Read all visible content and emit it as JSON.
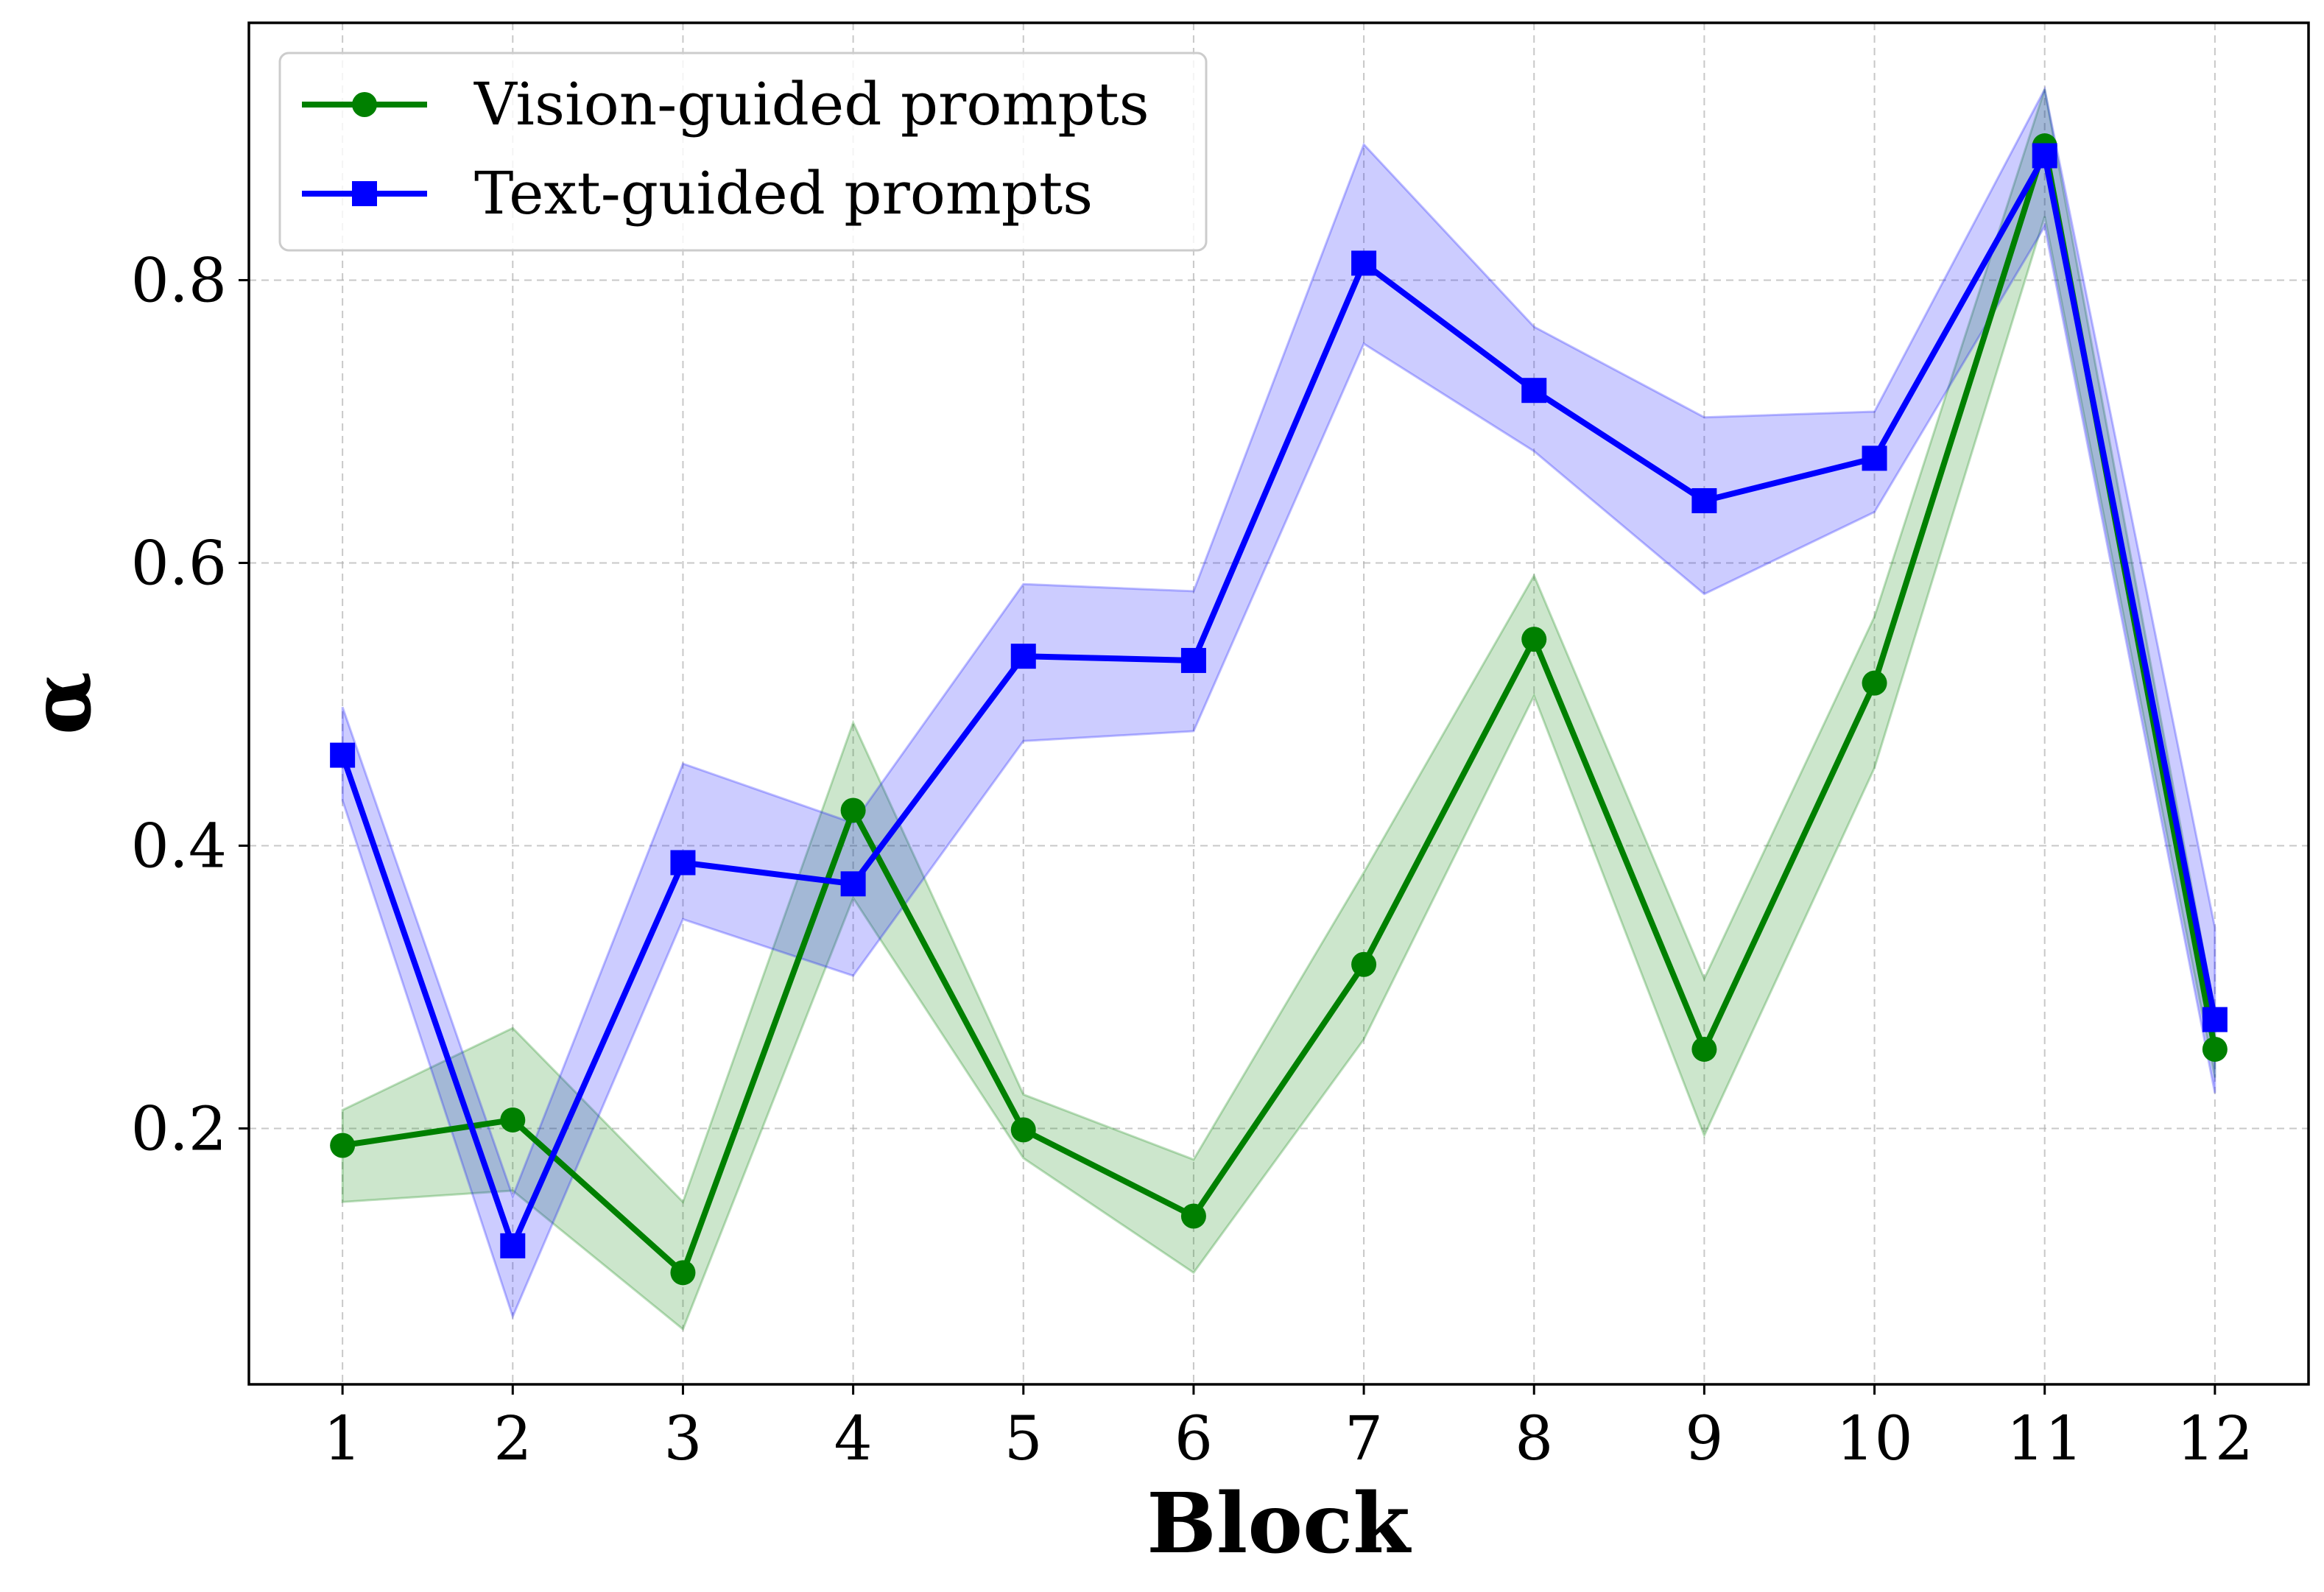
{
  "chart_data": {
    "type": "line",
    "title": "",
    "xlabel": "Block",
    "ylabel": "α",
    "x": [
      1,
      2,
      3,
      4,
      5,
      6,
      7,
      8,
      9,
      10,
      11,
      12
    ],
    "x_tick_labels": [
      "1",
      "2",
      "3",
      "4",
      "5",
      "6",
      "7",
      "8",
      "9",
      "10",
      "11",
      "12"
    ],
    "xlim": [
      0.45,
      12.55
    ],
    "ylim": [
      0.019,
      0.982
    ],
    "y_ticks": [
      0.2,
      0.4,
      0.6,
      0.8
    ],
    "y_tick_labels": [
      "0.2",
      "0.4",
      "0.6",
      "0.8"
    ],
    "grid": true,
    "grid_style": "dashed",
    "legend_position": "upper-left",
    "series": [
      {
        "name": "Vision-guided prompts",
        "color": "#008000",
        "band_color": "#008000",
        "marker": "circle",
        "values": [
          0.188,
          0.206,
          0.098,
          0.425,
          0.199,
          0.138,
          0.316,
          0.546,
          0.256,
          0.515,
          0.895,
          0.256
        ],
        "lower": [
          0.148,
          0.156,
          0.058,
          0.363,
          0.179,
          0.098,
          0.263,
          0.506,
          0.195,
          0.455,
          0.845,
          0.236
        ],
        "upper": [
          0.213,
          0.271,
          0.148,
          0.487,
          0.224,
          0.178,
          0.381,
          0.591,
          0.306,
          0.562,
          0.935,
          0.282
        ]
      },
      {
        "name": "Text-guided prompts",
        "color": "#0000ff",
        "band_color": "#0000ff",
        "marker": "square",
        "values": [
          0.464,
          0.117,
          0.388,
          0.373,
          0.534,
          0.531,
          0.812,
          0.722,
          0.644,
          0.674,
          0.888,
          0.277
        ],
        "lower": [
          0.432,
          0.067,
          0.348,
          0.308,
          0.474,
          0.481,
          0.755,
          0.679,
          0.578,
          0.636,
          0.838,
          0.225
        ],
        "upper": [
          0.498,
          0.152,
          0.458,
          0.416,
          0.585,
          0.58,
          0.896,
          0.767,
          0.703,
          0.707,
          0.935,
          0.342
        ]
      }
    ]
  }
}
